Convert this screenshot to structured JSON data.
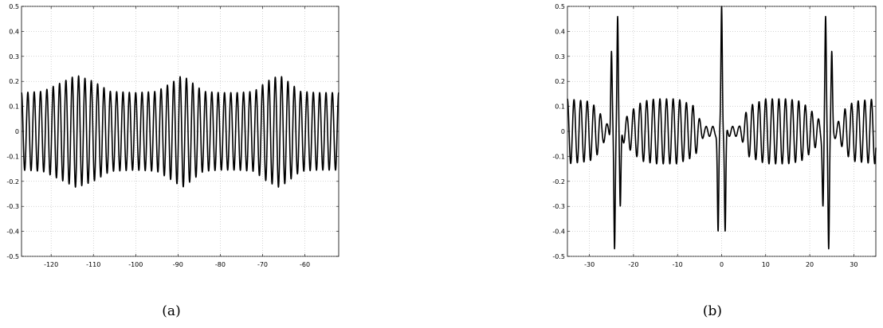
{
  "chart_data": [
    {
      "type": "line",
      "caption": "(a)",
      "xlim": [
        -127,
        -52
      ],
      "ylim": [
        -0.5,
        0.5
      ],
      "grid": true,
      "xticks": [
        -120,
        -110,
        -100,
        -90,
        -80,
        -70,
        -60
      ],
      "yticks": [
        0.5,
        0.4,
        0.3,
        0.2,
        0.1,
        0,
        -0.1,
        -0.2,
        -0.3,
        -0.4,
        -0.5
      ],
      "series": [
        {
          "period": 1.5,
          "amplitude_envelope": {
            "x": [
              -127,
              -122,
              -117,
              -114,
              -110,
              -106,
              -100,
              -95,
              -91,
              -89,
              -87,
              -84,
              -80,
              -76,
              -72,
              -69,
              -66,
              -64,
              -61,
              -57,
              -52
            ],
            "y": [
              0.155,
              0.16,
              0.2,
              0.225,
              0.2,
              0.16,
              0.155,
              0.16,
              0.2,
              0.225,
              0.2,
              0.16,
              0.155,
              0.155,
              0.16,
              0.2,
              0.225,
              0.2,
              0.16,
              0.155,
              0.155
            ]
          }
        }
      ]
    },
    {
      "type": "line",
      "caption": "(b)",
      "xlim": [
        -35,
        35
      ],
      "ylim": [
        -0.5,
        0.5
      ],
      "grid": true,
      "xticks": [
        -30,
        -20,
        -10,
        0,
        10,
        20,
        30
      ],
      "yticks": [
        0.5,
        0.4,
        0.3,
        0.2,
        0.1,
        0,
        -0.1,
        -0.2,
        -0.3,
        -0.4,
        -0.5
      ],
      "series": [
        {
          "period": 1.5,
          "base_amplitude_envelope": {
            "x": [
              -35,
              -30,
              -28,
              -27,
              -26,
              -24,
              -22,
              -20,
              -18,
              -15,
              -10,
              -6,
              -5,
              -4,
              -2,
              0,
              2,
              4,
              5,
              6,
              10,
              15,
              18,
              20,
              22,
              24,
              26,
              27,
              28,
              30,
              35
            ],
            "y": [
              0.13,
              0.12,
              0.09,
              0.05,
              0.03,
              0.02,
              0.05,
              0.09,
              0.12,
              0.13,
              0.13,
              0.1,
              0.05,
              0.02,
              0.02,
              0.02,
              0.02,
              0.02,
              0.05,
              0.1,
              0.13,
              0.13,
              0.12,
              0.09,
              0.05,
              0.02,
              0.03,
              0.05,
              0.09,
              0.12,
              0.13
            ]
          },
          "peaks": [
            {
              "x": -25.0,
              "y": 0.32
            },
            {
              "x": -24.3,
              "y": -0.47
            },
            {
              "x": -23.6,
              "y": 0.46
            },
            {
              "x": -23.0,
              "y": -0.3
            },
            {
              "x": -0.8,
              "y": -0.4
            },
            {
              "x": 0.0,
              "y": 0.5
            },
            {
              "x": 0.8,
              "y": -0.4
            },
            {
              "x": 23.0,
              "y": -0.3
            },
            {
              "x": 23.6,
              "y": 0.46
            },
            {
              "x": 24.3,
              "y": -0.47
            },
            {
              "x": 25.0,
              "y": 0.32
            }
          ]
        }
      ]
    }
  ]
}
